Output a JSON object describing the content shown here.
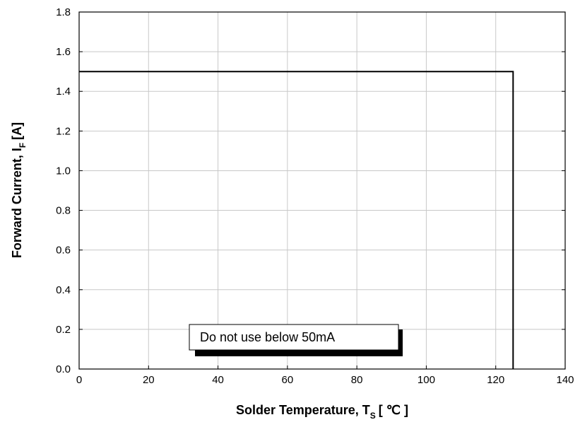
{
  "chart_data": {
    "type": "line",
    "x_axis": {
      "label": "Solder Temperature, T",
      "label_subscript": "S",
      "label_unit": "[ ℃ ]",
      "range": [
        0,
        140
      ],
      "ticks": [
        0,
        20,
        40,
        60,
        80,
        100,
        120,
        140
      ],
      "tick_labels": [
        "0",
        "20",
        "40",
        "60",
        "80",
        "100",
        "120",
        "140"
      ]
    },
    "y_axis": {
      "label": "Forward Current, I",
      "label_subscript": "F",
      "label_unit": "[A]",
      "range": [
        0,
        1.8
      ],
      "ticks": [
        0,
        0.2,
        0.4,
        0.6,
        0.8,
        1.0,
        1.2,
        1.4,
        1.6,
        1.8
      ],
      "tick_labels": [
        "0.0",
        "0.2",
        "0.4",
        "0.6",
        "0.8",
        "1.0",
        "1.2",
        "1.4",
        "1.6",
        "1.8"
      ]
    },
    "grid": true,
    "series": [
      {
        "color": "#000000",
        "points": [
          [
            0,
            1.5
          ],
          [
            125,
            1.5
          ],
          [
            125,
            0
          ]
        ]
      }
    ],
    "annotations": [
      {
        "text": "Do not use below 50mA"
      }
    ]
  },
  "colors": {
    "line": "#000000",
    "grid": "#c8c8c8",
    "background": "#ffffff"
  }
}
